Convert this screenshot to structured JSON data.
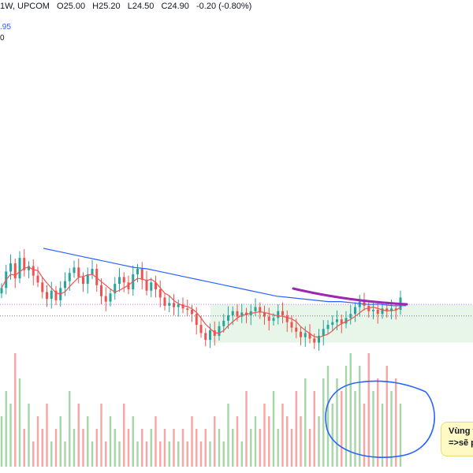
{
  "header": {
    "symbol_tail": "1W, UPCOM",
    "open": "O25.00",
    "high": "H25.20",
    "low": "L24.50",
    "close": "C24.90",
    "change": "-0.20 (-0.80%)"
  },
  "indicators": {
    "ma_value": ".95",
    "second_value": "0"
  },
  "annotation": {
    "line1": "Vùng t",
    "line2": "=>sẽ p"
  },
  "colors": {
    "up": "#26a69a",
    "down": "#ef5350",
    "ma_fast": "#ef5350",
    "ma_slow": "#2962ff",
    "trendline": "#9c27b0",
    "zone": "#e8f5e9",
    "circle": "#2962ff"
  },
  "chart_data": {
    "type": "candlestick",
    "timeframe": "1W",
    "exchange": "UPCOM",
    "last_bar": {
      "open": 25.0,
      "high": 25.2,
      "low": 24.5,
      "close": 24.9
    },
    "price_series": [
      25.6,
      26.8,
      27.4,
      26.3,
      27.8,
      26.9,
      27.2,
      26.5,
      26.0,
      25.3,
      24.8,
      25.4,
      24.7,
      25.6,
      26.1,
      26.7,
      27.1,
      26.4,
      25.9,
      26.6,
      27.0,
      25.8,
      25.0,
      24.6,
      25.2,
      25.9,
      26.4,
      26.0,
      25.5,
      26.6,
      27.0,
      26.2,
      25.4,
      26.0,
      25.5,
      24.9,
      24.3,
      24.5,
      24.2,
      24.4,
      24.1,
      24.0,
      23.7,
      22.9,
      22.3,
      21.8,
      22.5,
      22.1,
      22.8,
      23.2,
      23.6,
      23.9,
      23.5,
      23.8,
      23.6,
      23.9,
      24.2,
      23.8,
      23.5,
      23.2,
      23.4,
      23.9,
      23.6,
      23.1,
      22.7,
      22.4,
      22.0,
      22.3,
      21.9,
      21.6,
      22.1,
      22.6,
      22.9,
      23.1,
      23.3,
      23.0,
      23.4,
      23.7,
      24.2,
      24.6,
      24.3,
      23.9,
      24.0,
      23.7,
      24.1,
      23.9,
      24.1,
      24.0,
      24.9
    ],
    "volume": [
      4,
      6,
      5,
      9,
      7,
      3,
      5,
      2,
      4,
      3,
      5,
      2,
      3,
      4,
      2,
      6,
      3,
      5,
      3,
      4,
      2,
      3,
      5,
      2,
      4,
      3,
      2,
      5,
      3,
      4,
      2,
      3,
      2,
      3,
      4,
      2,
      3,
      2,
      3,
      2,
      3,
      2,
      4,
      3,
      2,
      3,
      2,
      4,
      3,
      2,
      5,
      3,
      4,
      2,
      6,
      3,
      4,
      3,
      5,
      4,
      6,
      3,
      5,
      4,
      3,
      6,
      4,
      7,
      3,
      6,
      4,
      7,
      8,
      5,
      7,
      6,
      8,
      9,
      6,
      8,
      5,
      9,
      6,
      7,
      5,
      8,
      6,
      7,
      5
    ],
    "ma_slow": [
      28.5,
      28.3,
      28.1,
      27.9,
      27.7,
      27.5,
      27.3,
      27.1,
      27.0,
      26.8,
      26.6,
      26.4,
      26.2,
      26.0,
      25.8,
      25.6,
      25.4,
      25.2,
      25.0,
      24.9,
      24.8,
      24.7,
      24.6,
      24.6,
      24.5,
      24.4,
      24.4,
      24.3,
      24.3
    ],
    "zone": {
      "from_price": 21.6,
      "to_price": 24.4
    },
    "reference_lines": [
      24.4,
      23.55
    ]
  }
}
